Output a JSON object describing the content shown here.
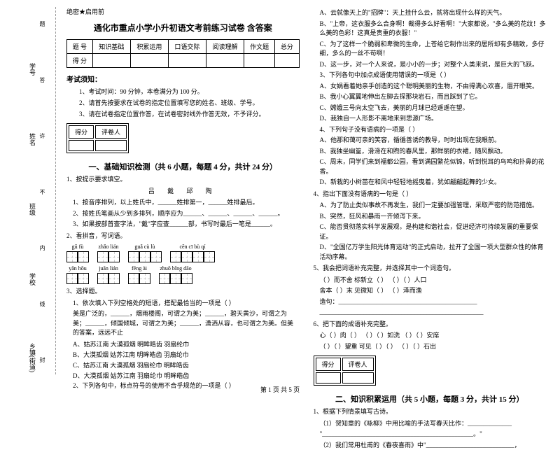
{
  "margin": {
    "labels": [
      "乡镇(街道)",
      "学校",
      "班级",
      "姓名",
      "学号"
    ],
    "sideText": [
      "封",
      "线",
      "内",
      "不",
      "许",
      "答",
      "题"
    ],
    "dots": "…………"
  },
  "header": {
    "confidential": "绝密★启用前"
  },
  "title": "通化市重点小学小升初语文考前练习试卷 含答案",
  "scoreTable": {
    "headers": [
      "题 号",
      "知识基础",
      "积累运用",
      "口语交际",
      "阅读理解",
      "作文题",
      "总分"
    ],
    "row2": "得 分"
  },
  "notice": {
    "title": "考试须知：",
    "items": [
      "1、考试时间：90 分钟，本卷满分为 100 分。",
      "2、请首先按要求在试卷的指定位置填写您的姓名、班级、学号。",
      "3、请在试卷指定位置作答，在试卷密封线外作答无效，不予评分。"
    ]
  },
  "sectionBox": {
    "score": "得分",
    "rater": "评卷人"
  },
  "section1": {
    "title": "一、基础知识检测（共 6 小题，每题 4 分，共计 24 分）",
    "q1": "1、按提示要求填空。",
    "q1_chars": "吕    戴    邱    陶",
    "q1_items": [
      "1、按音序排列，以上姓氏中，______姓排第一，______姓排最后。",
      "2、按姓氏笔画从少到多排列，顺序应为______、______、______、______。",
      "3、如果按部首查字法，\"戴\"字应查______部，书写时最后一笔是______。"
    ],
    "q2": "2、看拼音，写词语。",
    "pinyin_row1": [
      "gū fù",
      "zhǎo lián",
      "guǎ cù lù",
      "cēn cī bù qí"
    ],
    "pinyin_row2": [
      "yān hōu",
      "juān lián",
      "fēng ài",
      "zhuō bǐng dāo"
    ],
    "boxes_row1": [
      2,
      2,
      3,
      4
    ],
    "boxes_row2": [
      2,
      2,
      2,
      3
    ],
    "q3": "3、选择题。",
    "q3_text": "1、依次填入下列空格处的短语，搭配最恰当的一项是（    ）",
    "q3_body": "美是广泛的，______，烟雨楼阁，可谓之为美；______，碧天黄沙，可谓之为美；______，倾国倾城，可谓之为美；______，潇洒从容，也可谓之为美。但美的答案，远远不止",
    "q3_opts": [
      "A、姑苏江南    大漠孤烟    明眸皓齿    羽扇纶巾",
      "B、大漠孤烟    姑苏江南    明眸皓齿    羽扇纶巾",
      "C、姑苏江南    大漠孤烟    羽扇纶巾    明眸皓齿",
      "D、大漠孤烟    姑苏江南    羽扇纶巾    明眸皓齿"
    ],
    "q3_2": "2、下列各句中，标点符号的使用不合乎规范的一项是（    ）"
  },
  "col2": {
    "items_a": [
      "A、云就像天上的\"招牌\"：天上挂什么云，就将出现什么样的天气。",
      "B、\"上帝，这衣服多么合身啊！裁得多么好看啊！\"大家都说，\"多么美的花纹！多么美的色彩！这真是贵重的衣服！\"",
      "C、为了这样一个脆弱和卑微的生命，上苍给它制作出来的居所却有多精致，多仔细，多么的一丝不苟啊！",
      "D、这一步，对一个人来说，是小小的一步；对整个人类来说，是巨大的飞跃。"
    ],
    "q3_3": "3、下列各句中加点成语使用错误的一项是（    ）",
    "items_b": [
      "A、女娲看着她亲手创造的这个聪明美丽的生物，不由得满心欢喜，眉开眼笑。",
      "B、我小心翼翼地伸出左脚去探那块岩石，而且踩到了它。",
      "C、嫦娥三号向太空飞去，美丽的月球已经遥遥在望。",
      "D、我独自一人形影不离地来到思源广场。"
    ],
    "q3_4": "4、下列句子没有语病的一项是（    ）",
    "items_c": [
      "A、他那和蔼可亲的笑容，循循善诱的教导，时时出现在我眼前。",
      "B、我独坐幽篁，滑滑在和煦的春风里，那鲜丽的衣裙，随风飘动。",
      "C、周末，同学们来到福都公园，看到满园繁花似锦，听到悦耳的鸟鸣和扑鼻的花香。",
      "D、新栽的小树苗在和风中轻轻地摇曳着，犹如翩翩起舞的少女。"
    ],
    "q4": "4、指出下面没有语病的一句是（    ）",
    "items_d": [
      "A、为了防止类似事故不再发生，我们一定要加强管理，采取严密的防范措施。",
      "B、突然，狂风和暴雨一齐倾泻下来。",
      "C、能否贯彻落实科学发展观，是构建和谐社会，促进经济可持续发展的重要保证。",
      "D、\"全国亿万学生阳光体育运动\"的正式启动，拉开了全国一项大型群众性的体育活动序幕。"
    ],
    "q5": "5、我会把词语补充完整，并选择其中一个词造句。",
    "q5_items": [
      "（    ）而不舍        标新立（    ）        （    ）（    ）人口",
      "舍本（    ）末        见微知（    ）        （    ）泽而渔",
      "造句：____________________________________________",
      "____________________________________________________"
    ],
    "q6": "6、把下面的成语补充完整。",
    "q6_items": [
      "心（    ）肉（    ）    （    ）（    ）如洗    （    ）（    ）安席",
      "（    ）（    ）望重    可见（    ）（    ）    （    ）（    ）石出"
    ]
  },
  "section2": {
    "title": "二、知识积累运用（共 5 小题，每题 3 分，共计 15 分）",
    "q1": "1、根据下列情景填写古诗。",
    "q1_items": [
      "（1）贺知章的《咏柳》中用比喻的手法写春天比作：______________",
      "\"________________________________________________。\"",
      "（2）我们常用杜甫的《春夜喜雨》中\"____________________________，"
    ]
  },
  "footer": "第 1 页 共 5 页"
}
